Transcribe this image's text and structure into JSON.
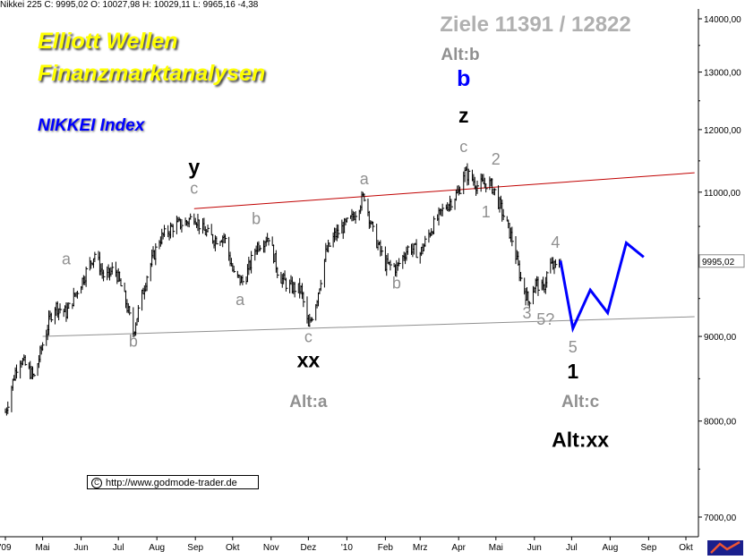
{
  "header": {
    "instrument": "Nikkei 225",
    "text": "Nikkei 225 C: 9995,02 O: 10027,98 H: 10029,11 L: 9965,16 -4,38"
  },
  "branding": {
    "line1": "Elliott Wellen",
    "line2": "Finanzmarktanalysen",
    "index": "NIKKEI Index"
  },
  "targets": "Ziele 11391 / 12822",
  "credit": "http://www.godmode-trader.de",
  "logo_icon": "vendor-logo-icon",
  "colors": {
    "price": "#000000",
    "channel_upper": "#c00000",
    "channel_lower": "#909090",
    "projection": "#0000ff",
    "label_gray": "#909090",
    "label_black": "#000000",
    "label_blue": "#0000ff",
    "brand_yellow": "#ffff00",
    "brand_blue": "#0000ff"
  },
  "chart_data": {
    "type": "line",
    "title": "Nikkei 225",
    "last_value": "9995,02",
    "y_axis": {
      "ticks": [
        "14000,00",
        "13000,00",
        "12000,00",
        "11000,00",
        "10000,00",
        "9000,00",
        "8000,00",
        "7000,00"
      ],
      "tick_values": [
        14000,
        13000,
        12000,
        11000,
        10000,
        9000,
        8000,
        7000
      ],
      "scale": "log",
      "ylim": [
        6800,
        14200
      ]
    },
    "x_axis": {
      "ticks": [
        "'09",
        "Mai",
        "Jun",
        "Jul",
        "Aug",
        "Sep",
        "Okt",
        "Nov",
        "Dez",
        "'10",
        "Feb",
        "Mrz",
        "Apr",
        "Mai",
        "Jun",
        "Jul",
        "Aug",
        "Sep",
        "Okt"
      ],
      "tick_dates": [
        "2009-04-01",
        "2009-05-01",
        "2009-06-01",
        "2009-07-01",
        "2009-08-01",
        "2009-09-01",
        "2009-10-01",
        "2009-11-01",
        "2009-12-01",
        "2010-01-01",
        "2010-02-01",
        "2010-03-01",
        "2010-04-01",
        "2010-05-01",
        "2010-06-01",
        "2010-07-01",
        "2010-08-01",
        "2010-09-01",
        "2010-10-01"
      ]
    },
    "series": [
      {
        "points": [
          [
            "2009-04-01",
            8100
          ],
          [
            "2009-04-12",
            8750
          ],
          [
            "2009-04-24",
            8500
          ],
          [
            "2009-05-01",
            8900
          ],
          [
            "2009-05-10",
            9400
          ],
          [
            "2009-05-20",
            9300
          ],
          [
            "2009-06-01",
            9700
          ],
          [
            "2009-06-12",
            10100
          ],
          [
            "2009-06-20",
            9750
          ],
          [
            "2009-06-28",
            9900
          ],
          [
            "2009-07-06",
            9500
          ],
          [
            "2009-07-13",
            9050
          ],
          [
            "2009-07-24",
            9800
          ],
          [
            "2009-08-03",
            10300
          ],
          [
            "2009-08-15",
            10500
          ],
          [
            "2009-08-25",
            10550
          ],
          [
            "2009-08-31",
            10650
          ],
          [
            "2009-09-06",
            10450
          ],
          [
            "2009-09-16",
            10300
          ],
          [
            "2009-09-24",
            10350
          ],
          [
            "2009-10-02",
            9800
          ],
          [
            "2009-10-10",
            9700
          ],
          [
            "2009-10-20",
            10200
          ],
          [
            "2009-10-30",
            10350
          ],
          [
            "2009-11-07",
            9800
          ],
          [
            "2009-11-15",
            9650
          ],
          [
            "2009-11-25",
            9600
          ],
          [
            "2009-12-01",
            9100
          ],
          [
            "2009-12-08",
            9500
          ],
          [
            "2009-12-15",
            10100
          ],
          [
            "2009-12-22",
            10350
          ],
          [
            "2010-01-05",
            10600
          ],
          [
            "2010-01-15",
            10950
          ],
          [
            "2010-01-22",
            10400
          ],
          [
            "2010-02-01",
            9950
          ],
          [
            "2010-02-10",
            9900
          ],
          [
            "2010-02-20",
            10200
          ],
          [
            "2010-03-01",
            10100
          ],
          [
            "2010-03-10",
            10450
          ],
          [
            "2010-03-20",
            10750
          ],
          [
            "2010-04-01",
            11000
          ],
          [
            "2010-04-05",
            11300
          ],
          [
            "2010-04-10",
            11250
          ],
          [
            "2010-04-16",
            11100
          ],
          [
            "2010-04-25",
            11150
          ],
          [
            "2010-04-29",
            11050
          ],
          [
            "2010-05-06",
            10700
          ],
          [
            "2010-05-14",
            10300
          ],
          [
            "2010-05-21",
            9750
          ],
          [
            "2010-05-27",
            9450
          ],
          [
            "2010-06-02",
            9700
          ],
          [
            "2010-06-08",
            9600
          ],
          [
            "2010-06-13",
            9950
          ],
          [
            "2010-06-18",
            9900
          ],
          [
            "2010-06-22",
            9995
          ]
        ]
      },
      {
        "points": [
          [
            "2010-06-22",
            10000
          ],
          [
            "2010-07-02",
            9100
          ],
          [
            "2010-07-16",
            9600
          ],
          [
            "2010-07-30",
            9300
          ],
          [
            "2010-08-14",
            10250
          ],
          [
            "2010-08-28",
            10050
          ]
        ]
      },
      {
        "points": [
          [
            "2009-08-31",
            10750
          ],
          [
            "2010-10-08",
            11300
          ]
        ]
      },
      {
        "points": [
          [
            "2009-05-01",
            9000
          ],
          [
            "2010-10-08",
            9250
          ]
        ]
      }
    ],
    "annotations": [
      {
        "text": "Ziele 11391 / 12822",
        "style": "target"
      },
      {
        "text": "Alt:b",
        "style": "alt"
      },
      {
        "text": "a",
        "style": "wave_gray",
        "x": "2009-05-20",
        "y": 9950
      },
      {
        "text": "b",
        "style": "wave_gray",
        "x": "2009-07-13",
        "y": 8870
      },
      {
        "text": "y",
        "style": "wave_black",
        "x": "2009-08-31",
        "y": 11280
      },
      {
        "text": "c",
        "style": "wave_gray",
        "x": "2009-08-31",
        "y": 10980
      },
      {
        "text": "b",
        "style": "wave_gray",
        "x": "2009-10-20",
        "y": 10520
      },
      {
        "text": "a",
        "style": "wave_gray",
        "x": "2009-10-07",
        "y": 9400
      },
      {
        "text": "a",
        "style": "wave_gray",
        "x": "2010-01-15",
        "y": 11120
      },
      {
        "text": "c",
        "style": "wave_gray",
        "x": "2009-12-01",
        "y": 8930
      },
      {
        "text": "xx",
        "style": "wave_black",
        "x": "2009-12-01",
        "y": 8620
      },
      {
        "text": "b",
        "style": "wave_gray",
        "x": "2010-02-10",
        "y": 9620
      },
      {
        "text": "b",
        "style": "wave_blue",
        "x": "2010-04-05",
        "y": 12750
      },
      {
        "text": "z",
        "style": "wave_black",
        "x": "2010-04-05",
        "y": 12120
      },
      {
        "text": "c",
        "style": "wave_gray",
        "x": "2010-04-05",
        "y": 11630
      },
      {
        "text": "2",
        "style": "wave_gray",
        "x": "2010-05-01",
        "y": 11430
      },
      {
        "text": "1",
        "style": "wave_gray",
        "x": "2010-04-23",
        "y": 10620
      },
      {
        "text": "3",
        "style": "wave_gray",
        "x": "2010-05-26",
        "y": 9230
      },
      {
        "text": "5?",
        "style": "wave_gray",
        "x": "2010-06-10",
        "y": 9150
      },
      {
        "text": "4",
        "style": "wave_gray",
        "x": "2010-06-18",
        "y": 10180
      },
      {
        "text": "5",
        "style": "wave_gray",
        "x": "2010-07-02",
        "y": 8800
      },
      {
        "text": "1",
        "style": "wave_black",
        "x": "2010-07-02",
        "y": 8490
      },
      {
        "text": "Alt:a",
        "style": "alt",
        "x": "2009-12-01",
        "y": 8160
      },
      {
        "text": "Alt:c",
        "style": "alt",
        "x": "2010-07-08",
        "y": 8160
      },
      {
        "text": "Alt:xx",
        "style": "alt_black",
        "x": "2010-07-08",
        "y": 7720
      }
    ]
  }
}
